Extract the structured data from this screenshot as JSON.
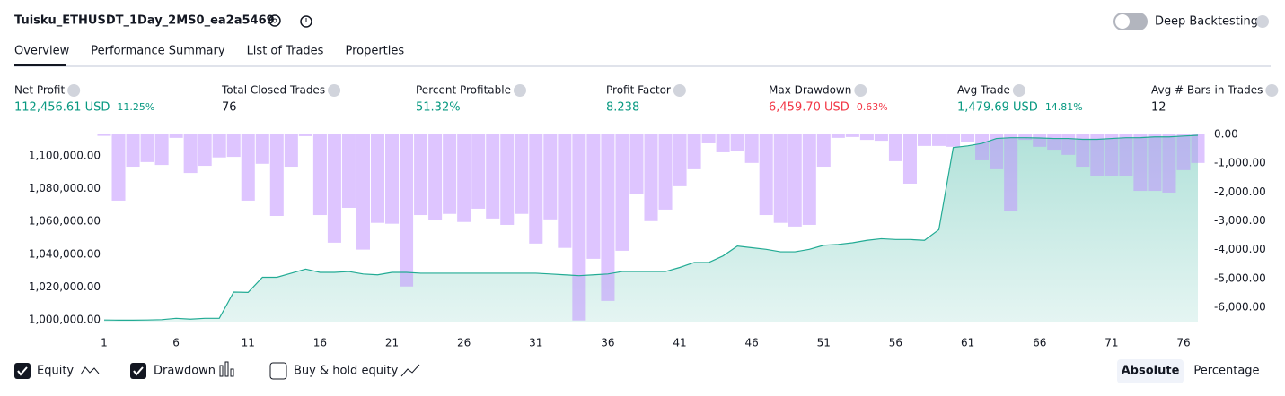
{
  "header": {
    "title": "Tuisku_ETHUSDT_1Day_2MS0_ea2a5469",
    "deep_backtesting": "Deep Backtesting"
  },
  "tabs": [
    "Overview",
    "Performance Summary",
    "List of Trades",
    "Properties"
  ],
  "metrics": [
    {
      "label": "Net Profit",
      "value": "112,456.61 USD",
      "pct": "11.25%",
      "color": "#089981"
    },
    {
      "label": "Total Closed Trades",
      "value": "76",
      "color": "#131722"
    },
    {
      "label": "Percent Profitable",
      "value": "51.32%",
      "color": "#089981"
    },
    {
      "label": "Profit Factor",
      "value": "8.238",
      "color": "#089981"
    },
    {
      "label": "Max Drawdown",
      "value": "6,459.70 USD",
      "pct": "0.63%",
      "color": "#f23645"
    },
    {
      "label": "Avg Trade",
      "value": "1,479.69 USD",
      "pct": "14.81%",
      "color": "#089981"
    },
    {
      "label": "Avg # Bars in Trades",
      "value": "12",
      "color": "#131722"
    }
  ],
  "controls": {
    "buy_hold": "Buy & hold equity",
    "absolute": "Absolute",
    "percentage": "Percentage"
  },
  "chart_data": {
    "type": "equity",
    "x": [
      1,
      2,
      3,
      4,
      5,
      6,
      7,
      8,
      9,
      10,
      11,
      12,
      13,
      14,
      15,
      16,
      17,
      18,
      19,
      20,
      21,
      22,
      23,
      24,
      25,
      26,
      27,
      28,
      29,
      30,
      31,
      32,
      33,
      34,
      35,
      36,
      37,
      38,
      39,
      40,
      41,
      42,
      43,
      44,
      45,
      46,
      47,
      48,
      49,
      50,
      51,
      52,
      53,
      54,
      55,
      56,
      57,
      58,
      59,
      60,
      61,
      62,
      63,
      64,
      65,
      66,
      67,
      68,
      69,
      70,
      71,
      72,
      73,
      74,
      75,
      76,
      77
    ],
    "xlim": [
      1,
      77
    ],
    "xticks": [
      1,
      6,
      11,
      16,
      21,
      26,
      31,
      36,
      41,
      46,
      51,
      56,
      61,
      66,
      71,
      76
    ],
    "ylim": [
      999000,
      1113000
    ],
    "yticks": [
      {
        "value": 1000000,
        "label": "1,000,000.00"
      },
      {
        "value": 1020000,
        "label": "1,020,000.00"
      },
      {
        "value": 1040000,
        "label": "1,040,000.00"
      },
      {
        "value": 1060000,
        "label": "1,060,000.00"
      },
      {
        "value": 1080000,
        "label": "1,080,000.00"
      },
      {
        "value": 1100000,
        "label": "1,100,000.00"
      }
    ],
    "y2lim": [
      -6500,
      0
    ],
    "y2ticks": [
      {
        "value": 0,
        "label": "0.00"
      },
      {
        "value": -1000,
        "label": "-1,000.00"
      },
      {
        "value": -2000,
        "label": "-2,000.00"
      },
      {
        "value": -3000,
        "label": "-3,000.00"
      },
      {
        "value": -4000,
        "label": "-4,000.00"
      },
      {
        "value": -5000,
        "label": "-5,000.00"
      },
      {
        "value": -6000,
        "label": "-6,000.00"
      }
    ],
    "series": [
      {
        "name": "Equity",
        "color": "#22ab94",
        "values": [
          1000000,
          999900,
          999900,
          1000000,
          1000200,
          1001000,
          1000500,
          1001000,
          1001000,
          1017000,
          1016800,
          1026000,
          1026000,
          1028500,
          1031000,
          1029000,
          1029000,
          1029500,
          1028000,
          1027500,
          1029000,
          1029000,
          1028500,
          1028500,
          1028500,
          1028500,
          1028500,
          1028500,
          1028500,
          1028500,
          1028500,
          1028000,
          1027500,
          1027000,
          1027500,
          1028000,
          1029500,
          1029500,
          1029500,
          1029500,
          1032000,
          1035000,
          1035000,
          1039000,
          1045000,
          1044000,
          1043000,
          1041500,
          1041500,
          1043000,
          1045500,
          1046000,
          1047000,
          1048500,
          1049500,
          1049000,
          1049000,
          1048500,
          1055000,
          1105000,
          1106000,
          1107500,
          1110500,
          1111000,
          1111000,
          1110800,
          1110500,
          1110500,
          1110000,
          1110000,
          1110500,
          1111000,
          1111000,
          1111500,
          1111500,
          1112000,
          1112456
        ]
      },
      {
        "name": "Drawdown",
        "color": "rgba(190,140,255,0.5)",
        "axis": "y2",
        "values": [
          -50,
          -2300,
          -1120,
          -960,
          -1060,
          -120,
          -1340,
          -1090,
          -800,
          -780,
          -2300,
          -1020,
          -2830,
          -1120,
          -60,
          -2800,
          -3760,
          -2550,
          -4000,
          -3070,
          -3100,
          -5280,
          -2800,
          -2980,
          -2760,
          -3040,
          -2580,
          -2920,
          -3140,
          -2760,
          -3790,
          -2950,
          -3940,
          -6460,
          -4320,
          -5780,
          -4040,
          -2080,
          -3010,
          -2610,
          -1800,
          -1210,
          -310,
          -620,
          -560,
          -990,
          -2800,
          -3070,
          -3200,
          -3140,
          -1120,
          -120,
          -90,
          -190,
          -220,
          -930,
          -1710,
          -400,
          -400,
          -430,
          -250,
          -900,
          -1210,
          -2670,
          -190,
          -430,
          -530,
          -710,
          -1120,
          -1430,
          -1460,
          -1430,
          -1960,
          -1960,
          -2020,
          -1240,
          -990
        ]
      }
    ]
  }
}
